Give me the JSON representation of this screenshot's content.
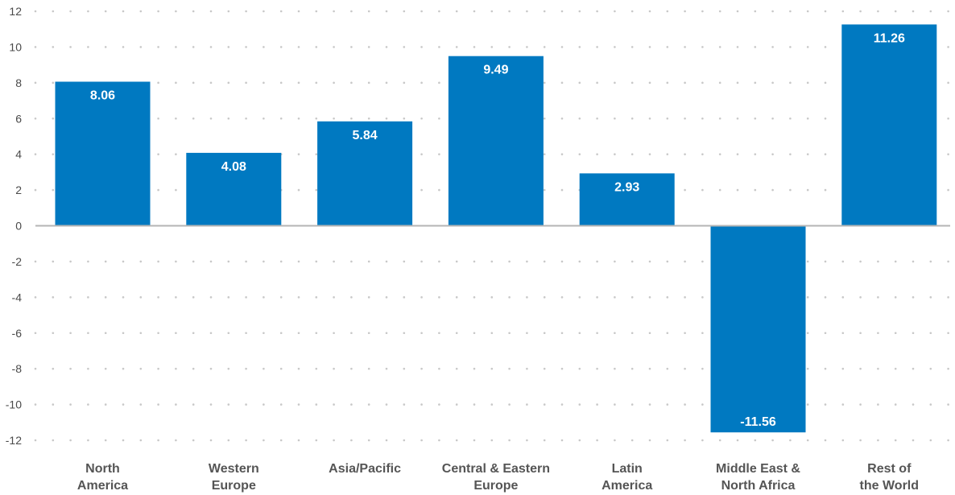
{
  "chart_data": {
    "type": "bar",
    "title": "",
    "xlabel": "",
    "ylabel": "",
    "categories": [
      [
        "North",
        "America"
      ],
      [
        "Western",
        "Europe"
      ],
      [
        "Asia/Pacific"
      ],
      [
        "Central & Eastern",
        "Europe"
      ],
      [
        "Latin",
        "America"
      ],
      [
        "Middle East &",
        "North Africa"
      ],
      [
        "Rest of",
        "the World"
      ]
    ],
    "values": [
      8.06,
      4.08,
      5.84,
      9.49,
      2.93,
      -11.56,
      11.26
    ],
    "value_labels": [
      "8.06",
      "4.08",
      "5.84",
      "9.49",
      "2.93",
      "-11.56",
      "11.26"
    ],
    "ylim": [
      -12,
      12
    ],
    "yticks": [
      12,
      10,
      8,
      6,
      4,
      2,
      0,
      -2,
      -4,
      -6,
      -8,
      -10,
      -12
    ],
    "grid": "dotted",
    "colors": {
      "bar": "#0079c1",
      "grid": "#c8c8c8",
      "text": "#555555"
    }
  }
}
